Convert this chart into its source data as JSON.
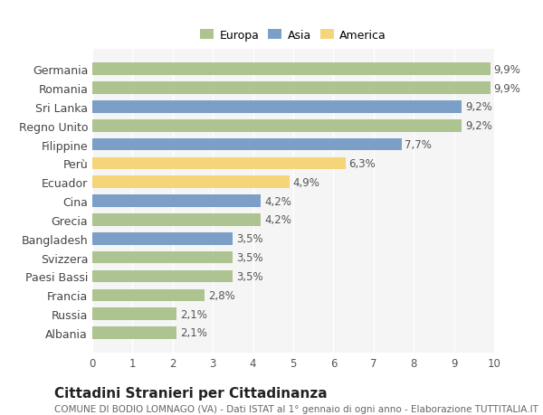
{
  "categories": [
    "Germania",
    "Romania",
    "Sri Lanka",
    "Regno Unito",
    "Filippine",
    "Perù",
    "Ecuador",
    "Cina",
    "Grecia",
    "Bangladesh",
    "Svizzera",
    "Paesi Bassi",
    "Francia",
    "Russia",
    "Albania"
  ],
  "values": [
    9.9,
    9.9,
    9.2,
    9.2,
    7.7,
    6.3,
    4.9,
    4.2,
    4.2,
    3.5,
    3.5,
    3.5,
    2.8,
    2.1,
    2.1
  ],
  "continents": [
    "Europa",
    "Europa",
    "Asia",
    "Europa",
    "Asia",
    "America",
    "America",
    "Asia",
    "Europa",
    "Asia",
    "Europa",
    "Europa",
    "Europa",
    "Europa",
    "Europa"
  ],
  "colors": {
    "Europa": "#adc490",
    "Asia": "#7b9fc7",
    "America": "#f5d47a"
  },
  "xlim": [
    0,
    10
  ],
  "xticks": [
    0,
    1,
    2,
    3,
    4,
    5,
    6,
    7,
    8,
    9,
    10
  ],
  "legend_labels": [
    "Europa",
    "Asia",
    "America"
  ],
  "title": "Cittadini Stranieri per Cittadinanza",
  "subtitle": "COMUNE DI BODIO LOMNAGO (VA) - Dati ISTAT al 1° gennaio di ogni anno - Elaborazione TUTTITALIA.IT",
  "background_color": "#ffffff",
  "plot_bg_color": "#f5f5f5",
  "bar_height": 0.65,
  "grid_color": "#ffffff",
  "label_fontsize": 9,
  "value_fontsize": 8.5,
  "title_fontsize": 11,
  "subtitle_fontsize": 7.5
}
